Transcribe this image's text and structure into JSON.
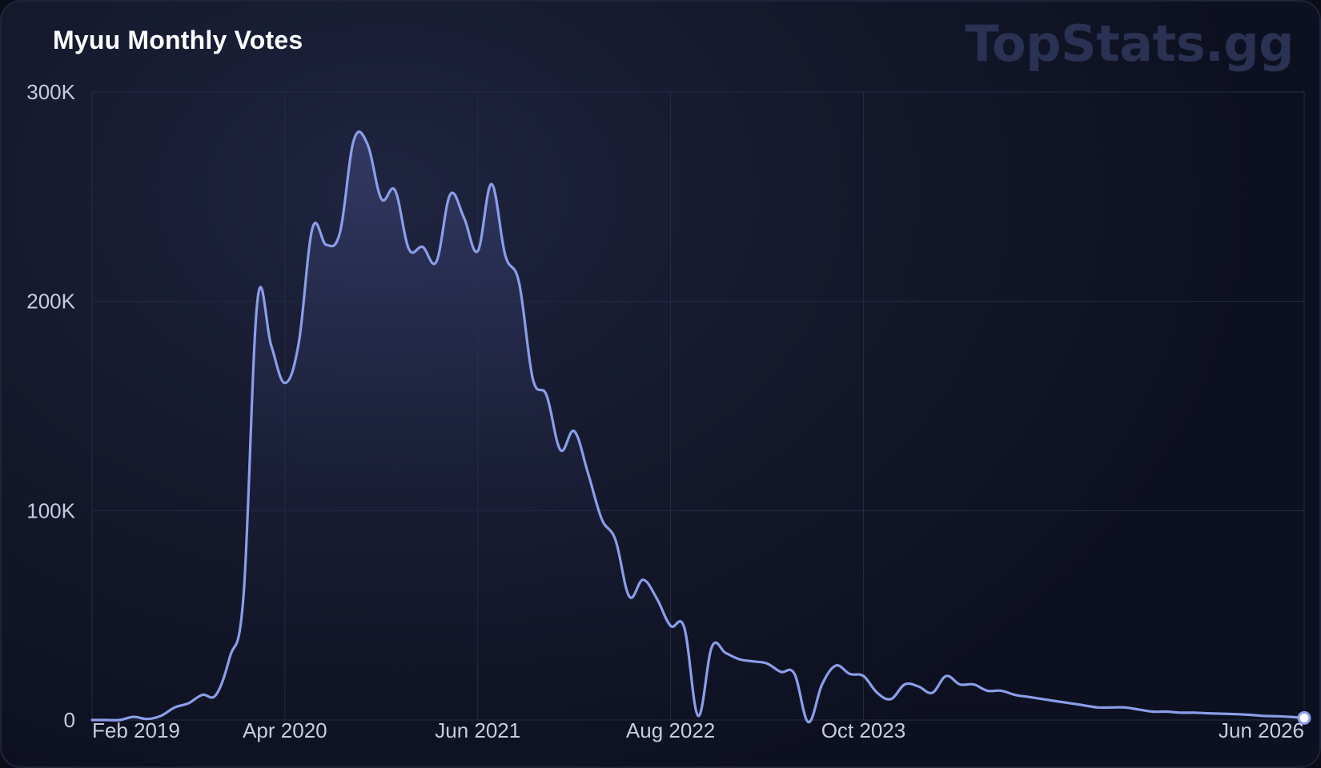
{
  "card": {
    "title": "Myuu Monthly Votes",
    "brand": "TopStats.gg"
  },
  "colors": {
    "line": "#8b9ee8",
    "fill_top": "#3a4170",
    "grid": "#262b44",
    "tick_label": "#c8cbe0",
    "brand": "#2a3152",
    "end_marker_fill": "#ffffff"
  },
  "chart_data": {
    "type": "area",
    "x_axis": {
      "type": "time",
      "start": "2019-02",
      "end": "2026-06",
      "tick_labels": [
        "Feb 2019",
        "Apr 2020",
        "Jun 2021",
        "Aug 2022",
        "Oct 2023",
        "Jun 2026"
      ],
      "tick_dates": [
        "2019-02",
        "2020-04",
        "2021-06",
        "2022-08",
        "2023-10",
        "2026-06"
      ]
    },
    "y_axis": {
      "ylim": [
        0,
        300000
      ],
      "tick_values": [
        0,
        100000,
        200000,
        300000
      ],
      "tick_labels": [
        "0",
        "100K",
        "200K",
        "300K"
      ]
    },
    "grid": true,
    "end_marker": true,
    "series": [
      {
        "x": [
          "2019-02",
          "2019-03",
          "2019-04",
          "2019-05",
          "2019-06",
          "2019-07",
          "2019-08",
          "2019-09",
          "2019-10",
          "2019-11",
          "2019-12",
          "2020-01",
          "2020-02",
          "2020-03",
          "2020-04",
          "2020-05",
          "2020-06",
          "2020-07",
          "2020-08",
          "2020-09",
          "2020-10",
          "2020-11",
          "2020-12",
          "2021-01",
          "2021-02",
          "2021-03",
          "2021-04",
          "2021-05",
          "2021-06",
          "2021-07",
          "2021-08",
          "2021-09",
          "2021-10",
          "2021-11",
          "2021-12",
          "2022-01",
          "2022-02",
          "2022-03",
          "2022-04",
          "2022-05",
          "2022-06",
          "2022-07",
          "2022-08",
          "2022-09",
          "2022-10",
          "2022-11",
          "2022-12",
          "2023-01",
          "2023-02",
          "2023-03",
          "2023-04",
          "2023-05",
          "2023-06",
          "2023-07",
          "2023-08",
          "2023-09",
          "2023-10",
          "2023-11",
          "2023-12",
          "2024-01",
          "2024-02",
          "2024-03",
          "2024-04",
          "2024-05",
          "2024-06",
          "2024-07",
          "2024-08",
          "2024-09",
          "2024-10",
          "2024-11",
          "2024-12",
          "2025-01",
          "2025-02",
          "2025-03",
          "2025-04",
          "2025-05",
          "2025-06",
          "2025-07",
          "2025-08",
          "2025-09",
          "2025-10",
          "2025-11",
          "2025-12",
          "2026-01",
          "2026-02",
          "2026-03",
          "2026-04",
          "2026-05",
          "2026-06"
        ],
        "values": [
          0,
          0,
          0,
          1500,
          500,
          2000,
          6000,
          8000,
          12000,
          12000,
          30000,
          60000,
          200000,
          179000,
          161000,
          180000,
          235000,
          227000,
          233000,
          277000,
          275000,
          249000,
          253000,
          225000,
          226000,
          219000,
          251000,
          240000,
          224000,
          256000,
          222000,
          209000,
          163000,
          155000,
          129000,
          138000,
          118000,
          96000,
          86000,
          59000,
          67000,
          58000,
          45000,
          44000,
          2000,
          35000,
          32000,
          29000,
          28000,
          27000,
          23000,
          22000,
          -1000,
          17000,
          26000,
          22000,
          21000,
          13000,
          10000,
          17000,
          16000,
          13000,
          21000,
          17000,
          17000,
          14000,
          14000,
          12000,
          11000,
          10000,
          9000,
          8000,
          7000,
          6000,
          6000,
          6000,
          5000,
          4000,
          4000,
          3500,
          3500,
          3200,
          3000,
          2800,
          2500,
          2000,
          1800,
          1500,
          1000
        ]
      }
    ]
  }
}
